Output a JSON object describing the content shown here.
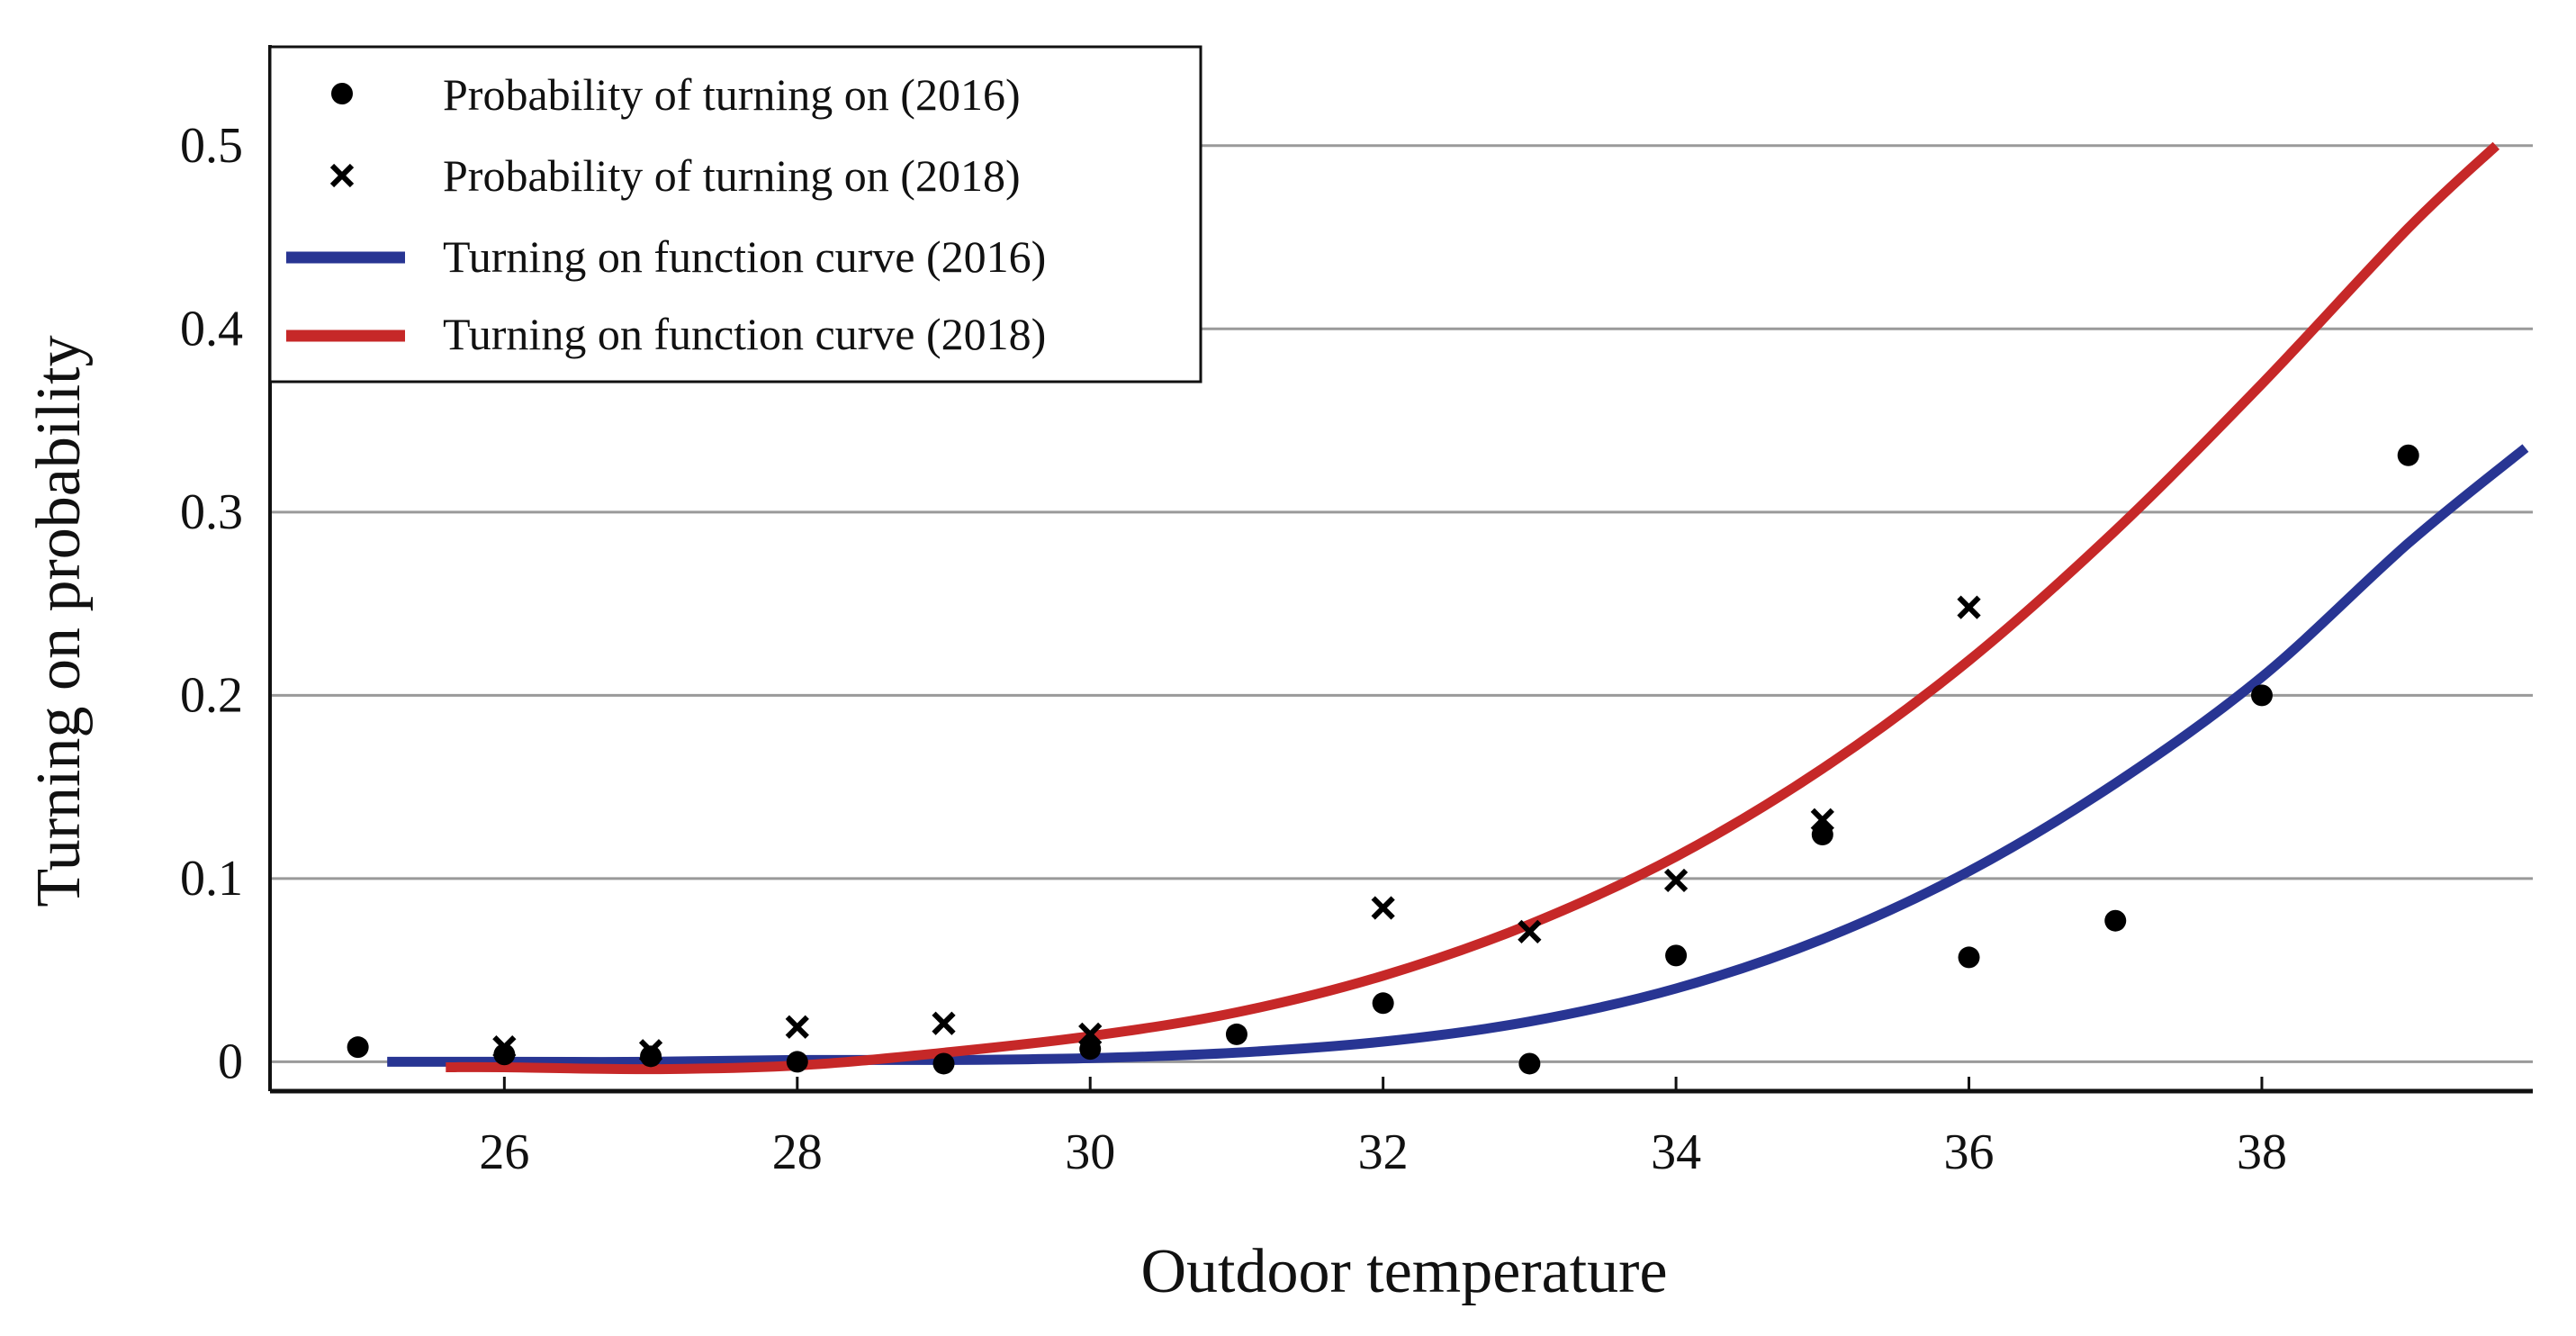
{
  "chart_data": {
    "type": "scatter",
    "title": "",
    "xlabel": "Outdoor temperature",
    "ylabel": "Turning on probability",
    "xlim": [
      24.4,
      39.85
    ],
    "ylim": [
      -0.016,
      0.55
    ],
    "xticks": [
      26,
      28,
      30,
      32,
      34,
      36,
      38
    ],
    "xtick_labels": [
      "26",
      "28",
      "30",
      "32",
      "34",
      "36",
      "38"
    ],
    "yticks": [
      0,
      0.1,
      0.2,
      0.3,
      0.4,
      0.5
    ],
    "ytick_labels": [
      "0",
      "0.1",
      "0.2",
      "0.3",
      "0.4",
      "0.5"
    ],
    "grid": "horizontal",
    "legend_position": "top-left",
    "series": [
      {
        "name": "Probability of turning on (2016)",
        "kind": "scatter",
        "marker": "circle",
        "color": "#000000",
        "x": [
          25,
          26,
          27,
          28,
          29,
          30,
          31,
          32,
          33,
          34,
          35,
          36,
          37,
          38,
          39
        ],
        "y": [
          0.008,
          0.004,
          0.003,
          0.0,
          -0.001,
          0.007,
          0.015,
          0.032,
          -0.001,
          0.058,
          0.124,
          0.057,
          0.077,
          0.2,
          0.331
        ]
      },
      {
        "name": "Probability of turning on (2018)",
        "kind": "scatter",
        "marker": "x",
        "color": "#000000",
        "x": [
          26,
          27,
          28,
          29,
          30,
          32,
          33,
          34,
          35,
          36
        ],
        "y": [
          0.008,
          0.006,
          0.019,
          0.021,
          0.015,
          0.084,
          0.071,
          0.099,
          0.132,
          0.248
        ]
      },
      {
        "name": "Turning on function curve (2016)",
        "kind": "line",
        "color": "#283593",
        "x": [
          25.2,
          26,
          27,
          28,
          29,
          30,
          31,
          32,
          33,
          34,
          35,
          36,
          37,
          38,
          39,
          39.8
        ],
        "y": [
          0.0,
          0.0,
          0.0,
          0.001,
          0.001,
          0.002,
          0.005,
          0.011,
          0.022,
          0.04,
          0.067,
          0.104,
          0.152,
          0.21,
          0.283,
          0.335
        ]
      },
      {
        "name": "Turning on function curve (2018)",
        "kind": "line",
        "color": "#c62828",
        "x": [
          25.6,
          26,
          27,
          28,
          29,
          30,
          31,
          32,
          33,
          34,
          35,
          36,
          37,
          38,
          39,
          39.6
        ],
        "y": [
          -0.003,
          -0.003,
          -0.004,
          -0.002,
          0.005,
          0.014,
          0.027,
          0.047,
          0.075,
          0.112,
          0.16,
          0.219,
          0.29,
          0.37,
          0.455,
          0.5
        ]
      }
    ]
  }
}
